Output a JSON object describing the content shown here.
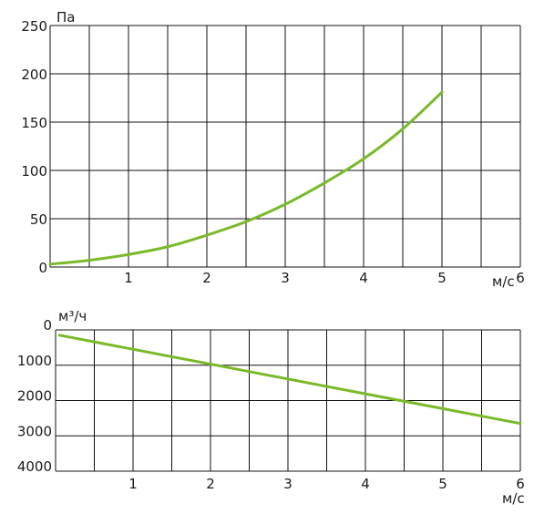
{
  "chart_data": [
    {
      "type": "line",
      "ylabel": "Па",
      "xlabel": "м/с",
      "xlim": [
        0,
        6
      ],
      "ylim": [
        0,
        250
      ],
      "x_ticks": [
        "1",
        "2",
        "3",
        "4",
        "5",
        "6"
      ],
      "y_ticks": [
        "0",
        "50",
        "100",
        "150",
        "200",
        "250"
      ],
      "grid": true,
      "series_color": "#7ab929",
      "series": [
        {
          "x": [
            0,
            0.5,
            1,
            1.5,
            2,
            2.5,
            3,
            3.5,
            4,
            4.5,
            5
          ],
          "values": [
            3,
            7,
            13,
            21,
            33,
            47,
            65,
            87,
            112,
            143,
            181
          ]
        }
      ]
    },
    {
      "type": "line",
      "ylabel": "м³/ч",
      "xlabel": "м/с",
      "xlim": [
        0,
        6
      ],
      "ylim": [
        0,
        4000
      ],
      "y_reversed": true,
      "x_ticks": [
        "1",
        "2",
        "3",
        "4",
        "5",
        "6"
      ],
      "y_ticks": [
        "0",
        "1000",
        "2000",
        "3000",
        "4000"
      ],
      "grid": true,
      "series_color": "#7ab929",
      "series": [
        {
          "x": [
            0.05,
            6
          ],
          "values": [
            150,
            2650
          ]
        }
      ]
    }
  ]
}
